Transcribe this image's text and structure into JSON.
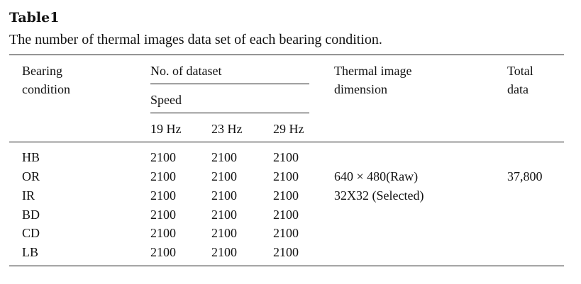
{
  "table": {
    "label": "Table1",
    "caption": "The number of thermal images data set of each bearing condition.",
    "headers": {
      "bearing_condition": [
        "Bearing",
        "condition"
      ],
      "no_of_dataset": "No. of dataset",
      "speed": "Speed",
      "speeds": [
        "19 Hz",
        "23 Hz",
        "29 Hz"
      ],
      "thermal_dimension": [
        "Thermal image",
        "dimension"
      ],
      "total_data": [
        "Total",
        "data"
      ]
    },
    "rows": [
      {
        "condition": "HB",
        "values": [
          "2100",
          "2100",
          "2100"
        ]
      },
      {
        "condition": "OR",
        "values": [
          "2100",
          "2100",
          "2100"
        ]
      },
      {
        "condition": "IR",
        "values": [
          "2100",
          "2100",
          "2100"
        ]
      },
      {
        "condition": "BD",
        "values": [
          "2100",
          "2100",
          "2100"
        ]
      },
      {
        "condition": "CD",
        "values": [
          "2100",
          "2100",
          "2100"
        ]
      },
      {
        "condition": "LB",
        "values": [
          "2100",
          "2100",
          "2100"
        ]
      }
    ],
    "dimension_values": [
      "640 × 480(Raw)",
      "32X32 (Selected)"
    ],
    "total_value": "37,800"
  }
}
